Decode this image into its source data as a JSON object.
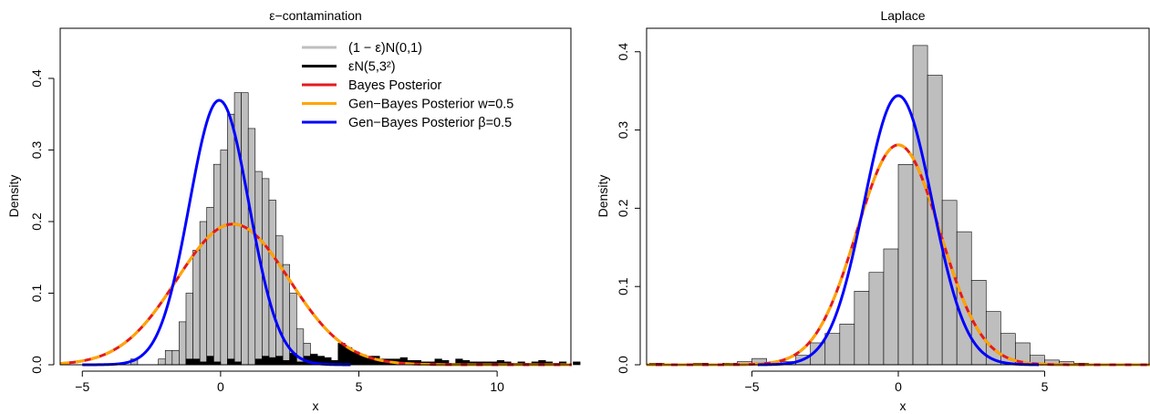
{
  "chart_data": [
    {
      "type": "histogram+line",
      "title": "ε−contamination",
      "xlabel": "x",
      "ylabel": "Density",
      "xlim": [
        -5.8,
        12.7
      ],
      "ylim": [
        0,
        0.47
      ],
      "xticks": [
        -5,
        0,
        5,
        10
      ],
      "yticks": [
        0.0,
        0.1,
        0.2,
        0.3,
        0.4
      ],
      "yticklabels": [
        "0.0",
        "0.1",
        "0.2",
        "0.3",
        "0.4"
      ],
      "grid": false,
      "legend_position": "top-right",
      "bin_width": 0.25,
      "histogram_grey": {
        "color": "#bebebe",
        "name": "(1 − ε)N(0,1)",
        "bins_start": -3.25,
        "values": [
          0.008,
          0.0,
          0.0,
          0.0,
          0.008,
          0.02,
          0.02,
          0.06,
          0.1,
          0.16,
          0.2,
          0.22,
          0.28,
          0.3,
          0.35,
          0.38,
          0.38,
          0.33,
          0.27,
          0.26,
          0.23,
          0.18,
          0.14,
          0.1,
          0.05,
          0.03,
          0.015,
          0.005,
          0.002
        ]
      },
      "histogram_black": {
        "color": "#000000",
        "name": "εN(5,3²)",
        "bins_start": -1.25,
        "values": [
          0.008,
          0.008,
          0.004,
          0.012,
          0.004,
          0.0,
          0.008,
          0.004,
          0.0,
          0.0,
          0.008,
          0.012,
          0.01,
          0.012,
          0.006,
          0.016,
          0.004,
          0.012,
          0.014,
          0.012,
          0.01,
          0.006,
          0.03,
          0.024,
          0.018,
          0.014,
          0.012,
          0.012,
          0.008,
          0.008,
          0.008,
          0.01,
          0.006,
          0.006,
          0.004,
          0.004,
          0.008,
          0.006,
          0.002,
          0.008,
          0.006,
          0.004,
          0.004,
          0.004,
          0.004,
          0.006,
          0.004,
          0.002,
          0.004,
          0.002,
          0.004,
          0.006,
          0.004,
          0.002,
          0.004,
          0.0,
          0.004
        ]
      },
      "series": [
        {
          "name": "Bayes Posterior",
          "color": "#e41a1c",
          "kind": "normal",
          "mean": 0.45,
          "sd": 2.03,
          "x_range": [
            -5.8,
            12.7
          ]
        },
        {
          "name": "Gen−Bayes Posterior w=0.5",
          "color": "#ffa500",
          "kind": "normal",
          "mean": 0.45,
          "sd": 2.03,
          "x_range": [
            -5.8,
            12.7
          ],
          "dashed": true
        },
        {
          "name": "Gen−Bayes Posterior β=0.5",
          "color": "#0000ff",
          "kind": "normal",
          "mean": -0.05,
          "sd": 1.08,
          "x_range": [
            -5.0,
            4.7
          ]
        }
      ],
      "legend": [
        {
          "label": "(1 − ε)N(0,1)",
          "color": "#bebebe"
        },
        {
          "label": "εN(5,3²)",
          "color": "#000000"
        },
        {
          "label": "Bayes Posterior",
          "color": "#e41a1c"
        },
        {
          "label": "Gen−Bayes Posterior w=0.5",
          "color": "#ffa500"
        },
        {
          "label": "Gen−Bayes Posterior β=0.5",
          "color": "#0000ff"
        }
      ]
    },
    {
      "type": "histogram+line",
      "title": "Laplace",
      "xlabel": "x",
      "ylabel": "Density",
      "xlim": [
        -8.6,
        8.6
      ],
      "ylim": [
        0,
        0.43
      ],
      "xticks": [
        -5,
        0,
        5
      ],
      "yticks": [
        0.0,
        0.1,
        0.2,
        0.3,
        0.4
      ],
      "yticklabels": [
        "0.0",
        "0.1",
        "0.2",
        "0.3",
        "0.4"
      ],
      "grid": false,
      "bin_width": 0.5,
      "histogram_grey": {
        "color": "#bebebe",
        "bins_start": -8.5,
        "values": [
          0.002,
          0.0,
          0.0,
          0.002,
          0.0,
          0.002,
          0.004,
          0.008,
          0.002,
          0.004,
          0.012,
          0.028,
          0.04,
          0.052,
          0.094,
          0.118,
          0.148,
          0.256,
          0.408,
          0.37,
          0.21,
          0.17,
          0.108,
          0.068,
          0.04,
          0.028,
          0.012,
          0.006,
          0.004,
          0.002
        ]
      },
      "series": [
        {
          "name": "Bayes Posterior",
          "color": "#e41a1c",
          "kind": "normal",
          "mean": 0.0,
          "sd": 1.42,
          "x_range": [
            -8.6,
            8.6
          ]
        },
        {
          "name": "Gen−Bayes Posterior w=0.5",
          "color": "#ffa500",
          "kind": "normal",
          "mean": 0.0,
          "sd": 1.42,
          "x_range": [
            -8.6,
            8.6
          ],
          "dashed": true
        },
        {
          "name": "Gen−Bayes Posterior β=0.5",
          "color": "#0000ff",
          "kind": "normal",
          "mean": 0.0,
          "sd": 1.16,
          "x_range": [
            -4.8,
            4.8
          ]
        }
      ]
    }
  ]
}
